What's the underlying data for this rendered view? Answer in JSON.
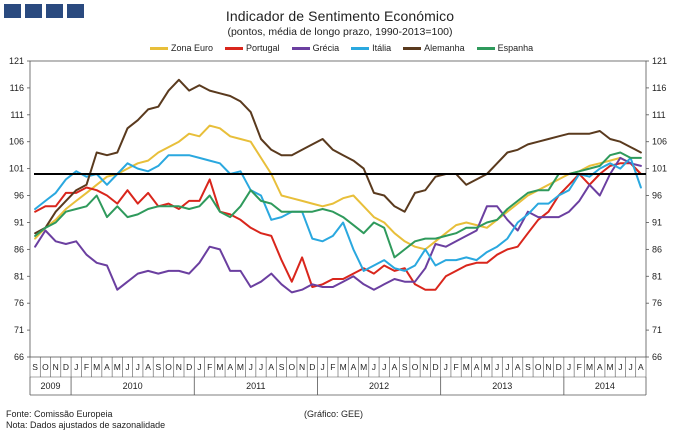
{
  "header": {
    "title": "Indicador de Sentimento Económico",
    "subtitle": "(pontos, média de longo prazo, 1990-2013=100)"
  },
  "footer": {
    "source": "Fonte: Comissão Europeia",
    "note": "Nota: Dados ajustados de sazonalidade",
    "credit": "(Gráfico: GEE)"
  },
  "chart_data": {
    "type": "line",
    "title": "Indicador de Sentimento Económico",
    "subtitle": "(pontos, média de longo prazo, 1990-2013=100)",
    "ylim": [
      66,
      121
    ],
    "yticks": [
      66,
      71,
      76,
      81,
      86,
      91,
      96,
      101,
      106,
      111,
      116,
      121
    ],
    "reference_line": 100,
    "grid": false,
    "legend_position": "top",
    "x": [
      "S",
      "O",
      "N",
      "D",
      "J",
      "F",
      "M",
      "A",
      "M",
      "J",
      "J",
      "A",
      "S",
      "O",
      "N",
      "D",
      "J",
      "F",
      "M",
      "A",
      "M",
      "J",
      "J",
      "A",
      "S",
      "O",
      "N",
      "D",
      "J",
      "F",
      "M",
      "A",
      "M",
      "J",
      "J",
      "A",
      "S",
      "O",
      "N",
      "D",
      "J",
      "F",
      "M",
      "A",
      "M",
      "J",
      "J",
      "A",
      "S",
      "O",
      "N",
      "D",
      "J",
      "F",
      "M",
      "A",
      "M",
      "J",
      "J",
      "A"
    ],
    "years": [
      {
        "label": "2009",
        "start": 0,
        "end": 3
      },
      {
        "label": "2010",
        "start": 4,
        "end": 15
      },
      {
        "label": "2011",
        "start": 16,
        "end": 27
      },
      {
        "label": "2012",
        "start": 28,
        "end": 39
      },
      {
        "label": "2013",
        "start": 40,
        "end": 51
      },
      {
        "label": "2014",
        "start": 52,
        "end": 59
      }
    ],
    "series": [
      {
        "name": "Zona Euro",
        "color": "#e8bf3a",
        "values": [
          88,
          90,
          91.5,
          93.5,
          95,
          96.5,
          98,
          99.5,
          100,
          101,
          102,
          102.5,
          104,
          105,
          106,
          107.5,
          107,
          109,
          108.5,
          107,
          106.5,
          106,
          103,
          100,
          96,
          95.5,
          95,
          94.5,
          94,
          94.5,
          95.5,
          96,
          94,
          92,
          91,
          89,
          87.5,
          86.5,
          86,
          87.5,
          89,
          90.5,
          91,
          90.5,
          90,
          91.5,
          93,
          94.5,
          96,
          97,
          98,
          99,
          100,
          100.5,
          101.5,
          102,
          102.5,
          103,
          102,
          100
        ]
      },
      {
        "name": "Portugal",
        "color": "#d9261c",
        "values": [
          93,
          94,
          94,
          96.5,
          96.5,
          97.5,
          97,
          96,
          94.5,
          97,
          94.5,
          96.5,
          94,
          94.5,
          93.5,
          95,
          95,
          99,
          93,
          92.5,
          91.5,
          90,
          89,
          88.5,
          84,
          80,
          84.5,
          79,
          79.5,
          80.5,
          80.5,
          81.5,
          82.5,
          81.5,
          83,
          82,
          82.5,
          79.5,
          78.5,
          78.5,
          81,
          82,
          83,
          83.5,
          83.5,
          85,
          86,
          86.5,
          89,
          91.5,
          93,
          96,
          98,
          100,
          98,
          100,
          101.5,
          102,
          102,
          100
        ]
      },
      {
        "name": "Grécia",
        "color": "#6b3fa0",
        "values": [
          86.5,
          89.5,
          87.5,
          87,
          87.5,
          85,
          83.5,
          83,
          78.5,
          80,
          81.5,
          82,
          81.5,
          82,
          82,
          81.5,
          83.5,
          86.5,
          86,
          82,
          82,
          79,
          80,
          81.5,
          79.5,
          78,
          78.5,
          79.5,
          79,
          79,
          80,
          81,
          79.5,
          78.5,
          79.5,
          80.5,
          80,
          80,
          82.5,
          87,
          86.5,
          87.5,
          88.5,
          89.5,
          94,
          94,
          91.5,
          89.5,
          93,
          92,
          92,
          92,
          93,
          95,
          98,
          96,
          100,
          103,
          102,
          101.5
        ]
      },
      {
        "name": "Itália",
        "color": "#2aa8df",
        "values": [
          93.5,
          95,
          96.5,
          99,
          100.5,
          99.5,
          100,
          98,
          100,
          102,
          101,
          100.5,
          101.5,
          103.5,
          103.5,
          103.5,
          103,
          102.5,
          102,
          100,
          100.5,
          97,
          96,
          91.5,
          92,
          93,
          93,
          88,
          87.5,
          88.5,
          91,
          86,
          82,
          83,
          84,
          82.5,
          82,
          83,
          86,
          83,
          84,
          84,
          84.5,
          84,
          85.5,
          86.5,
          88,
          91,
          92.5,
          94.5,
          94.5,
          96,
          97,
          100,
          99.5,
          101,
          102,
          101,
          103,
          97.5
        ]
      },
      {
        "name": "Alemanha",
        "color": "#5a3a1e",
        "values": [
          89,
          90,
          93,
          95,
          97,
          98,
          104,
          103.5,
          104,
          108.5,
          110,
          112,
          112.5,
          115.5,
          117.5,
          115.5,
          116.5,
          115.5,
          115,
          114.5,
          113.5,
          111.5,
          106.5,
          104.5,
          103.5,
          103.5,
          104.5,
          105.5,
          106.5,
          104.5,
          103.5,
          102.5,
          101,
          96.5,
          96,
          94,
          93,
          96.5,
          97,
          99.5,
          100,
          100,
          98,
          99,
          100,
          102,
          104,
          104.5,
          105.5,
          106,
          106.5,
          107,
          107.5,
          107.5,
          107.5,
          108,
          106.5,
          106,
          105,
          104
        ]
      },
      {
        "name": "Espanha",
        "color": "#2f9a5c",
        "values": [
          88.5,
          90,
          91,
          93,
          93.5,
          94,
          96,
          92,
          94,
          92,
          92.5,
          93.5,
          94,
          94,
          94,
          93.5,
          94,
          96,
          93,
          92,
          94,
          97,
          95,
          94.5,
          93,
          93,
          93,
          93,
          93.5,
          93,
          92,
          90.5,
          89,
          91,
          90,
          84.5,
          86,
          87.5,
          88,
          88,
          88.5,
          89,
          90,
          90,
          91,
          91.5,
          93.5,
          95,
          96.5,
          97,
          97,
          100,
          100,
          100.5,
          101,
          101.5,
          103.5,
          104,
          103,
          103
        ]
      }
    ]
  }
}
